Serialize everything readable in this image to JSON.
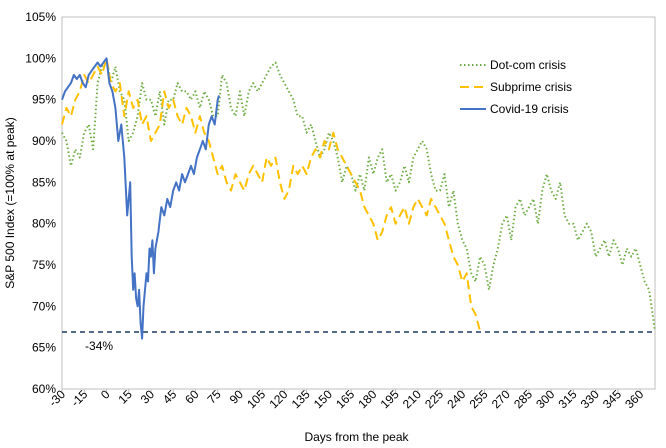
{
  "chart_data": {
    "type": "line",
    "xlabel": "Days from the peak",
    "ylabel": "S&P 500 Index (=100% at peak)",
    "xlim": [
      -30,
      370
    ],
    "ylim": [
      60,
      105
    ],
    "x_ticks": [
      -30,
      -15,
      0,
      15,
      30,
      45,
      60,
      75,
      90,
      105,
      120,
      135,
      150,
      165,
      180,
      195,
      210,
      225,
      240,
      255,
      270,
      285,
      300,
      315,
      330,
      345,
      360
    ],
    "y_ticks": [
      60,
      65,
      70,
      75,
      80,
      85,
      90,
      95,
      100,
      105
    ],
    "y_tick_suffix": "%",
    "legend_position": "top-right",
    "reference_line": {
      "y": 66.9,
      "label": "-34%",
      "label_x": -5,
      "label_y": 65.2,
      "color": "#1f3864"
    },
    "series": [
      {
        "name": "Dot-com crisis",
        "color": "#70ad47",
        "style": "dotted",
        "points": [
          [
            -30,
            91
          ],
          [
            -27,
            90
          ],
          [
            -24,
            87
          ],
          [
            -21,
            89
          ],
          [
            -18,
            88
          ],
          [
            -15,
            91
          ],
          [
            -12,
            92
          ],
          [
            -9,
            89
          ],
          [
            -6,
            97
          ],
          [
            -3,
            99
          ],
          [
            0,
            100
          ],
          [
            3,
            97
          ],
          [
            6,
            99
          ],
          [
            9,
            96
          ],
          [
            12,
            95
          ],
          [
            15,
            90
          ],
          [
            18,
            91
          ],
          [
            21,
            93
          ],
          [
            24,
            97
          ],
          [
            27,
            95
          ],
          [
            30,
            95
          ],
          [
            33,
            93
          ],
          [
            36,
            96
          ],
          [
            39,
            92
          ],
          [
            42,
            95
          ],
          [
            45,
            95
          ],
          [
            48,
            97
          ],
          [
            51,
            96
          ],
          [
            54,
            96
          ],
          [
            57,
            95
          ],
          [
            60,
            96
          ],
          [
            63,
            94
          ],
          [
            66,
            96
          ],
          [
            69,
            95
          ],
          [
            72,
            93
          ],
          [
            75,
            93
          ],
          [
            78,
            98
          ],
          [
            81,
            97
          ],
          [
            84,
            94
          ],
          [
            87,
            93
          ],
          [
            90,
            96
          ],
          [
            93,
            93
          ],
          [
            96,
            96
          ],
          [
            99,
            97
          ],
          [
            102,
            96
          ],
          [
            105,
            97
          ],
          [
            108,
            98
          ],
          [
            111,
            99
          ],
          [
            114,
            99.5
          ],
          [
            117,
            98
          ],
          [
            120,
            97
          ],
          [
            123,
            96
          ],
          [
            126,
            95
          ],
          [
            129,
            93
          ],
          [
            132,
            93
          ],
          [
            135,
            91
          ],
          [
            138,
            92
          ],
          [
            141,
            90
          ],
          [
            144,
            88
          ],
          [
            147,
            89
          ],
          [
            150,
            91
          ],
          [
            153,
            90
          ],
          [
            156,
            88
          ],
          [
            159,
            85
          ],
          [
            162,
            87
          ],
          [
            165,
            86
          ],
          [
            168,
            84
          ],
          [
            171,
            86
          ],
          [
            174,
            84
          ],
          [
            177,
            88
          ],
          [
            180,
            86
          ],
          [
            183,
            88
          ],
          [
            186,
            89
          ],
          [
            189,
            85
          ],
          [
            192,
            86
          ],
          [
            195,
            84
          ],
          [
            198,
            85
          ],
          [
            201,
            87
          ],
          [
            204,
            85
          ],
          [
            207,
            88
          ],
          [
            210,
            89
          ],
          [
            213,
            90
          ],
          [
            216,
            89
          ],
          [
            219,
            86
          ],
          [
            222,
            84
          ],
          [
            225,
            84
          ],
          [
            228,
            86
          ],
          [
            231,
            82
          ],
          [
            234,
            84
          ],
          [
            237,
            80
          ],
          [
            240,
            78
          ],
          [
            243,
            77
          ],
          [
            246,
            74
          ],
          [
            249,
            73
          ],
          [
            252,
            76
          ],
          [
            255,
            75
          ],
          [
            258,
            72
          ],
          [
            261,
            75
          ],
          [
            264,
            77
          ],
          [
            267,
            80
          ],
          [
            270,
            81
          ],
          [
            273,
            78
          ],
          [
            276,
            82
          ],
          [
            279,
            83
          ],
          [
            282,
            81
          ],
          [
            285,
            82
          ],
          [
            288,
            83
          ],
          [
            291,
            80
          ],
          [
            294,
            84
          ],
          [
            297,
            86
          ],
          [
            300,
            84
          ],
          [
            303,
            83
          ],
          [
            306,
            85
          ],
          [
            309,
            81
          ],
          [
            312,
            80
          ],
          [
            315,
            80
          ],
          [
            318,
            78
          ],
          [
            321,
            79
          ],
          [
            324,
            80
          ],
          [
            327,
            79
          ],
          [
            330,
            76
          ],
          [
            333,
            77
          ],
          [
            336,
            78
          ],
          [
            339,
            76
          ],
          [
            342,
            78
          ],
          [
            345,
            77
          ],
          [
            348,
            75
          ],
          [
            351,
            77
          ],
          [
            354,
            76
          ],
          [
            357,
            77
          ],
          [
            360,
            75
          ],
          [
            363,
            73
          ],
          [
            366,
            72
          ],
          [
            370,
            67
          ]
        ]
      },
      {
        "name": "Subprime crisis",
        "color": "#ffc000",
        "style": "dashed",
        "points": [
          [
            -30,
            92
          ],
          [
            -27,
            94
          ],
          [
            -24,
            93
          ],
          [
            -21,
            95
          ],
          [
            -18,
            96
          ],
          [
            -15,
            98
          ],
          [
            -12,
            97
          ],
          [
            -9,
            98
          ],
          [
            -6,
            99
          ],
          [
            -3,
            98
          ],
          [
            0,
            100
          ],
          [
            3,
            97
          ],
          [
            6,
            96
          ],
          [
            9,
            97
          ],
          [
            12,
            93
          ],
          [
            15,
            96
          ],
          [
            18,
            94
          ],
          [
            21,
            95
          ],
          [
            24,
            92
          ],
          [
            27,
            93
          ],
          [
            30,
            90
          ],
          [
            33,
            91
          ],
          [
            36,
            92
          ],
          [
            39,
            96
          ],
          [
            42,
            94
          ],
          [
            45,
            95
          ],
          [
            48,
            93
          ],
          [
            51,
            92
          ],
          [
            54,
            94
          ],
          [
            57,
            93
          ],
          [
            60,
            91
          ],
          [
            63,
            93
          ],
          [
            66,
            91
          ],
          [
            69,
            90
          ],
          [
            72,
            88
          ],
          [
            75,
            86
          ],
          [
            78,
            87
          ],
          [
            81,
            85
          ],
          [
            84,
            84
          ],
          [
            87,
            86
          ],
          [
            90,
            85
          ],
          [
            93,
            84
          ],
          [
            96,
            86
          ],
          [
            99,
            87
          ],
          [
            102,
            86
          ],
          [
            105,
            85
          ],
          [
            108,
            88
          ],
          [
            111,
            87
          ],
          [
            114,
            88
          ],
          [
            117,
            85
          ],
          [
            120,
            83
          ],
          [
            123,
            84
          ],
          [
            126,
            87
          ],
          [
            129,
            86
          ],
          [
            132,
            87
          ],
          [
            135,
            86
          ],
          [
            138,
            88
          ],
          [
            141,
            89
          ],
          [
            144,
            88
          ],
          [
            147,
            90
          ],
          [
            150,
            89
          ],
          [
            153,
            91
          ],
          [
            156,
            89
          ],
          [
            159,
            88
          ],
          [
            162,
            87
          ],
          [
            165,
            86
          ],
          [
            168,
            85
          ],
          [
            171,
            84
          ],
          [
            174,
            82
          ],
          [
            177,
            81
          ],
          [
            180,
            80
          ],
          [
            183,
            78
          ],
          [
            186,
            79
          ],
          [
            189,
            81
          ],
          [
            192,
            82
          ],
          [
            195,
            80
          ],
          [
            198,
            81
          ],
          [
            201,
            82
          ],
          [
            204,
            80
          ],
          [
            207,
            82
          ],
          [
            210,
            83
          ],
          [
            213,
            82
          ],
          [
            216,
            81
          ],
          [
            219,
            83
          ],
          [
            222,
            82
          ],
          [
            225,
            81
          ],
          [
            228,
            80
          ],
          [
            231,
            78
          ],
          [
            234,
            76
          ],
          [
            237,
            75
          ],
          [
            240,
            73
          ],
          [
            243,
            74
          ],
          [
            246,
            70
          ],
          [
            249,
            69
          ],
          [
            252,
            67
          ]
        ]
      },
      {
        "name": "Covid-19 crisis",
        "color": "#4472c4",
        "style": "solid",
        "points": [
          [
            -30,
            95
          ],
          [
            -28,
            96
          ],
          [
            -26,
            96.5
          ],
          [
            -24,
            97
          ],
          [
            -22,
            98
          ],
          [
            -20,
            97.5
          ],
          [
            -18,
            98
          ],
          [
            -16,
            97
          ],
          [
            -14,
            96.5
          ],
          [
            -12,
            98
          ],
          [
            -10,
            98.5
          ],
          [
            -8,
            99
          ],
          [
            -6,
            99.5
          ],
          [
            -4,
            99
          ],
          [
            -2,
            99.5
          ],
          [
            0,
            100
          ],
          [
            2,
            97
          ],
          [
            4,
            96
          ],
          [
            6,
            94
          ],
          [
            8,
            90
          ],
          [
            10,
            92
          ],
          [
            12,
            88
          ],
          [
            14,
            81
          ],
          [
            16,
            85
          ],
          [
            17,
            76
          ],
          [
            18,
            72
          ],
          [
            19,
            74
          ],
          [
            20,
            71
          ],
          [
            21,
            70
          ],
          [
            22,
            72
          ],
          [
            23,
            68
          ],
          [
            24,
            66.1
          ],
          [
            25,
            70
          ],
          [
            26,
            72
          ],
          [
            27,
            74
          ],
          [
            28,
            73
          ],
          [
            29,
            77
          ],
          [
            30,
            76
          ],
          [
            31,
            78
          ],
          [
            32,
            74
          ],
          [
            33,
            77
          ],
          [
            34,
            78
          ],
          [
            35,
            79
          ],
          [
            37,
            82
          ],
          [
            39,
            81
          ],
          [
            41,
            83
          ],
          [
            43,
            82
          ],
          [
            45,
            84
          ],
          [
            47,
            85
          ],
          [
            49,
            84
          ],
          [
            51,
            86
          ],
          [
            53,
            85
          ],
          [
            55,
            86
          ],
          [
            57,
            87
          ],
          [
            59,
            86
          ],
          [
            61,
            88
          ],
          [
            63,
            89
          ],
          [
            65,
            90
          ],
          [
            67,
            89
          ],
          [
            69,
            92
          ],
          [
            71,
            93
          ],
          [
            73,
            92
          ],
          [
            75,
            95
          ],
          [
            76,
            95.5
          ]
        ]
      }
    ]
  }
}
